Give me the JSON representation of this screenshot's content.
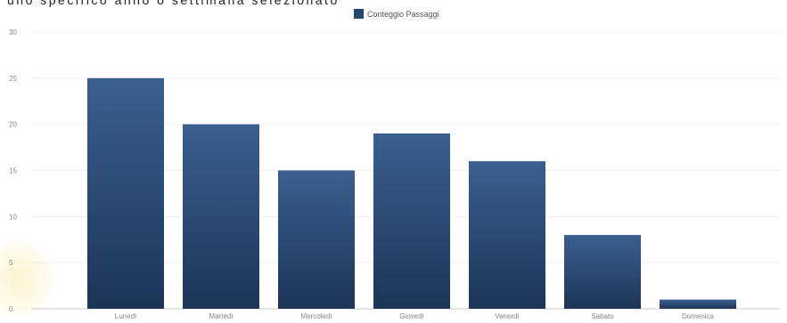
{
  "page": {
    "caption": "uno specifico anno o settimana selezionato"
  },
  "colors": {
    "bar_top": "#3b5f8f",
    "bar_bottom": "#1c3557",
    "grid": "#eeeeee",
    "axis": "#cccccc",
    "tick_text": "#888888",
    "legend_swatch": "#27466f"
  },
  "chart_data": {
    "type": "bar",
    "legend_position": "top-center",
    "grid": true,
    "ylim": [
      0,
      30
    ],
    "yticks": [
      0,
      5,
      10,
      15,
      20,
      25,
      30
    ],
    "categories": [
      "Lunedì",
      "Martedì",
      "Mercoledì",
      "Giovedì",
      "Venerdì",
      "Sabato",
      "Domenica"
    ],
    "series": [
      {
        "name": "Conteggio Passaggi",
        "values": [
          25,
          20,
          15,
          19,
          16,
          8,
          1
        ]
      }
    ]
  }
}
